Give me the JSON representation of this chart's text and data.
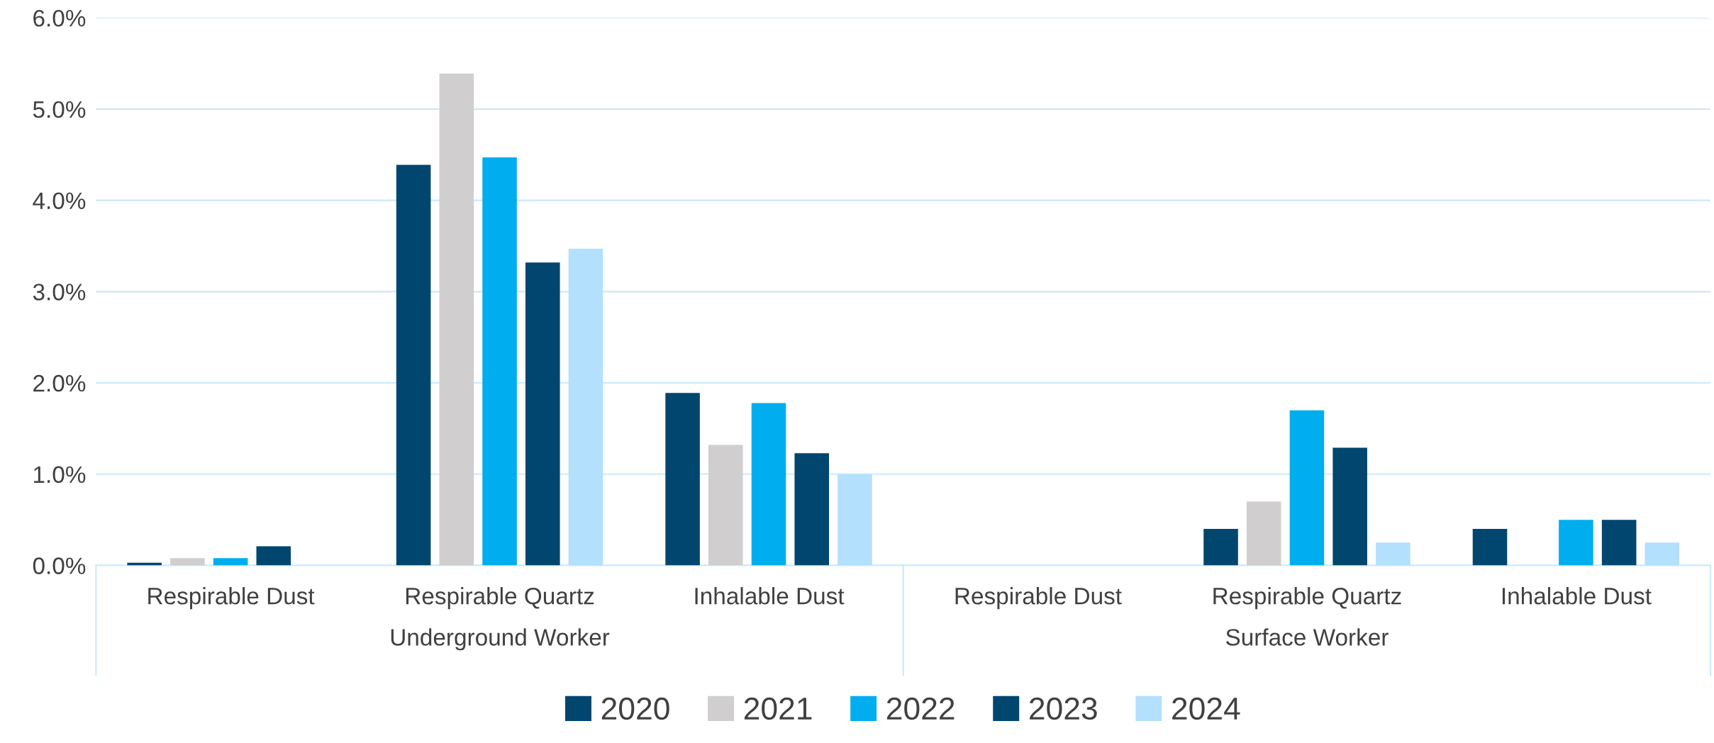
{
  "chart_data": {
    "type": "bar",
    "categories": [
      "Respirable Dust",
      "Respirable Quartz",
      "Inhalable Dust",
      "Respirable Dust",
      "Respirable Quartz",
      "Inhalable Dust"
    ],
    "annotations": [
      "Underground Worker",
      "Surface Worker"
    ],
    "series": [
      {
        "name": "2020",
        "color": "#00466f",
        "values": [
          0.03,
          4.39,
          1.89,
          null,
          0.4,
          0.4
        ]
      },
      {
        "name": "2021",
        "color": "#d0cece",
        "values": [
          0.08,
          5.39,
          1.32,
          null,
          0.7,
          null
        ]
      },
      {
        "name": "2022",
        "color": "#00aeef",
        "values": [
          0.08,
          4.47,
          1.78,
          null,
          1.7,
          0.5
        ]
      },
      {
        "name": "2023",
        "color": "#00466f",
        "values": [
          0.21,
          3.32,
          1.23,
          null,
          1.29,
          0.5
        ]
      },
      {
        "name": "2024",
        "color": "#b3e0fd",
        "values": [
          null,
          3.47,
          1.0,
          null,
          0.25,
          0.25
        ]
      }
    ],
    "ylim": [
      0,
      6
    ],
    "yticks": [
      {
        "value": 0,
        "label": "0.0%"
      },
      {
        "value": 1,
        "label": "1.0%"
      },
      {
        "value": 2,
        "label": "2.0%"
      },
      {
        "value": 3,
        "label": "3.0%"
      },
      {
        "value": 4,
        "label": "4.0%"
      },
      {
        "value": 5,
        "label": "5.0%"
      },
      {
        "value": 6,
        "label": "6.0%"
      }
    ],
    "grid": "y",
    "legend": "bottom"
  }
}
